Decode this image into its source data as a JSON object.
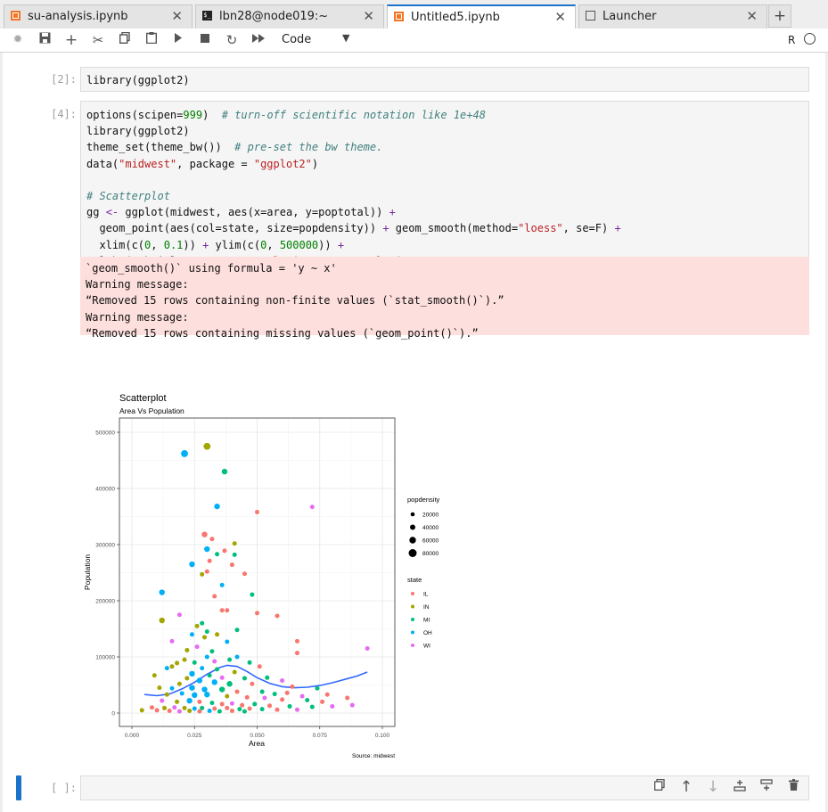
{
  "tabs": [
    {
      "label": "su-analysis.ipynb",
      "icon": "notebook-icon"
    },
    {
      "label": "lbn28@node019:~",
      "icon": "terminal-icon"
    },
    {
      "label": "Untitled5.ipynb",
      "icon": "notebook-icon",
      "active": true
    },
    {
      "label": "Launcher",
      "icon": "launcher-icon"
    }
  ],
  "toolbar": {
    "cell_type": "Code",
    "kernel_name": "R"
  },
  "cells": {
    "c1": {
      "prompt": "[2]:",
      "code": [
        "library(ggplot2)"
      ]
    },
    "c2": {
      "prompt": "[4]:"
    },
    "c3": {
      "prompt": "[ ]:"
    }
  },
  "stderr": [
    "`geom_smooth()` using formula = 'y ~ x'",
    "Warning message:",
    "“Removed 15 rows containing non-finite values (`stat_smooth()`).”",
    "Warning message:",
    "“Removed 15 rows containing missing values (`geom_point()`).”"
  ],
  "chart_data": {
    "type": "scatter",
    "title": "Scatterplot",
    "subtitle": "Area Vs Population",
    "xlabel": "Area",
    "ylabel": "Population",
    "caption": "Source: midwest",
    "xlim": [
      0,
      0.1
    ],
    "ylim": [
      0,
      500000
    ],
    "x_ticks": [
      "0.000",
      "0.025",
      "0.050",
      "0.075",
      "0.100"
    ],
    "y_ticks": [
      "0",
      "100000",
      "200000",
      "300000",
      "400000",
      "500000"
    ],
    "grid": true,
    "legend_position": "right",
    "size_legend": {
      "title": "popdensity",
      "entries": [
        "20000",
        "40000",
        "60000",
        "80000"
      ]
    },
    "color_legend": {
      "title": "state",
      "entries": [
        "IL",
        "IN",
        "MI",
        "OH",
        "WI"
      ]
    },
    "colors": {
      "IL": "#F8766D",
      "IN": "#A3A500",
      "MI": "#00BF7D",
      "OH": "#00B0F6",
      "WI": "#E76BF3",
      "smooth": "#3366FF"
    },
    "points": [
      {
        "x": 0.03,
        "y": 475000,
        "state": "IN",
        "s": 4
      },
      {
        "x": 0.021,
        "y": 462000,
        "state": "OH",
        "s": 4
      },
      {
        "x": 0.037,
        "y": 430000,
        "state": "MI",
        "s": 3
      },
      {
        "x": 0.072,
        "y": 367000,
        "state": "WI",
        "s": 2
      },
      {
        "x": 0.034,
        "y": 368000,
        "state": "OH",
        "s": 3
      },
      {
        "x": 0.05,
        "y": 358000,
        "state": "IL",
        "s": 2
      },
      {
        "x": 0.029,
        "y": 318000,
        "state": "IL",
        "s": 3
      },
      {
        "x": 0.032,
        "y": 310000,
        "state": "IL",
        "s": 2
      },
      {
        "x": 0.041,
        "y": 302000,
        "state": "IN",
        "s": 2
      },
      {
        "x": 0.03,
        "y": 292000,
        "state": "OH",
        "s": 3
      },
      {
        "x": 0.037,
        "y": 289000,
        "state": "IL",
        "s": 2
      },
      {
        "x": 0.031,
        "y": 271000,
        "state": "IL",
        "s": 2
      },
      {
        "x": 0.024,
        "y": 265000,
        "state": "OH",
        "s": 3
      },
      {
        "x": 0.041,
        "y": 282000,
        "state": "MI",
        "s": 2
      },
      {
        "x": 0.034,
        "y": 283000,
        "state": "MI",
        "s": 2
      },
      {
        "x": 0.04,
        "y": 264000,
        "state": "IL",
        "s": 2
      },
      {
        "x": 0.03,
        "y": 252000,
        "state": "IL",
        "s": 2
      },
      {
        "x": 0.028,
        "y": 247000,
        "state": "IN",
        "s": 2
      },
      {
        "x": 0.045,
        "y": 248000,
        "state": "IL",
        "s": 2
      },
      {
        "x": 0.036,
        "y": 228000,
        "state": "OH",
        "s": 2
      },
      {
        "x": 0.012,
        "y": 215000,
        "state": "OH",
        "s": 3
      },
      {
        "x": 0.048,
        "y": 211000,
        "state": "MI",
        "s": 2
      },
      {
        "x": 0.033,
        "y": 208000,
        "state": "IL",
        "s": 2
      },
      {
        "x": 0.038,
        "y": 183000,
        "state": "IL",
        "s": 2
      },
      {
        "x": 0.036,
        "y": 183000,
        "state": "IL",
        "s": 2
      },
      {
        "x": 0.05,
        "y": 178000,
        "state": "IL",
        "s": 2
      },
      {
        "x": 0.019,
        "y": 175000,
        "state": "WI",
        "s": 2
      },
      {
        "x": 0.058,
        "y": 173000,
        "state": "IL",
        "s": 2
      },
      {
        "x": 0.012,
        "y": 165000,
        "state": "IN",
        "s": 3
      },
      {
        "x": 0.028,
        "y": 160000,
        "state": "MI",
        "s": 2
      },
      {
        "x": 0.026,
        "y": 155000,
        "state": "IN",
        "s": 2
      },
      {
        "x": 0.03,
        "y": 145000,
        "state": "MI",
        "s": 2
      },
      {
        "x": 0.042,
        "y": 148000,
        "state": "MI",
        "s": 2
      },
      {
        "x": 0.034,
        "y": 140000,
        "state": "IN",
        "s": 2
      },
      {
        "x": 0.029,
        "y": 135000,
        "state": "IN",
        "s": 2
      },
      {
        "x": 0.024,
        "y": 140000,
        "state": "OH",
        "s": 2
      },
      {
        "x": 0.016,
        "y": 128000,
        "state": "WI",
        "s": 2
      },
      {
        "x": 0.066,
        "y": 128000,
        "state": "IL",
        "s": 2
      },
      {
        "x": 0.038,
        "y": 127000,
        "state": "OH",
        "s": 2
      },
      {
        "x": 0.026,
        "y": 118000,
        "state": "WI",
        "s": 2
      },
      {
        "x": 0.022,
        "y": 112000,
        "state": "IN",
        "s": 2
      },
      {
        "x": 0.032,
        "y": 110000,
        "state": "MI",
        "s": 2
      },
      {
        "x": 0.094,
        "y": 115000,
        "state": "WI",
        "s": 2
      },
      {
        "x": 0.066,
        "y": 107000,
        "state": "IL",
        "s": 2
      },
      {
        "x": 0.03,
        "y": 100000,
        "state": "OH",
        "s": 2
      },
      {
        "x": 0.042,
        "y": 100000,
        "state": "OH",
        "s": 2
      },
      {
        "x": 0.021,
        "y": 95000,
        "state": "IN",
        "s": 2
      },
      {
        "x": 0.018,
        "y": 89000,
        "state": "IN",
        "s": 2
      },
      {
        "x": 0.025,
        "y": 90000,
        "state": "MI",
        "s": 2
      },
      {
        "x": 0.033,
        "y": 92000,
        "state": "WI",
        "s": 2
      },
      {
        "x": 0.039,
        "y": 95000,
        "state": "MI",
        "s": 2
      },
      {
        "x": 0.047,
        "y": 90000,
        "state": "MI",
        "s": 2
      },
      {
        "x": 0.014,
        "y": 80000,
        "state": "OH",
        "s": 2
      },
      {
        "x": 0.016,
        "y": 83000,
        "state": "IN",
        "s": 2
      },
      {
        "x": 0.009,
        "y": 67000,
        "state": "IN",
        "s": 2
      },
      {
        "x": 0.028,
        "y": 80000,
        "state": "OH",
        "s": 2
      },
      {
        "x": 0.034,
        "y": 78000,
        "state": "MI",
        "s": 2
      },
      {
        "x": 0.051,
        "y": 83000,
        "state": "IL",
        "s": 2
      },
      {
        "x": 0.041,
        "y": 73000,
        "state": "IN",
        "s": 2
      },
      {
        "x": 0.024,
        "y": 70000,
        "state": "OH",
        "s": 3
      },
      {
        "x": 0.031,
        "y": 67000,
        "state": "MI",
        "s": 2
      },
      {
        "x": 0.036,
        "y": 63000,
        "state": "WI",
        "s": 2
      },
      {
        "x": 0.022,
        "y": 62000,
        "state": "IN",
        "s": 2
      },
      {
        "x": 0.045,
        "y": 62000,
        "state": "MI",
        "s": 2
      },
      {
        "x": 0.054,
        "y": 63000,
        "state": "MI",
        "s": 2
      },
      {
        "x": 0.06,
        "y": 58000,
        "state": "WI",
        "s": 2
      },
      {
        "x": 0.027,
        "y": 58000,
        "state": "OH",
        "s": 3
      },
      {
        "x": 0.033,
        "y": 55000,
        "state": "OH",
        "s": 3
      },
      {
        "x": 0.039,
        "y": 52000,
        "state": "MI",
        "s": 3
      },
      {
        "x": 0.019,
        "y": 52000,
        "state": "IN",
        "s": 2
      },
      {
        "x": 0.048,
        "y": 52000,
        "state": "IL",
        "s": 2
      },
      {
        "x": 0.064,
        "y": 47000,
        "state": "IL",
        "s": 2
      },
      {
        "x": 0.074,
        "y": 44000,
        "state": "MI",
        "s": 2
      },
      {
        "x": 0.011,
        "y": 45000,
        "state": "IN",
        "s": 2
      },
      {
        "x": 0.016,
        "y": 44000,
        "state": "OH",
        "s": 2
      },
      {
        "x": 0.024,
        "y": 45000,
        "state": "OH",
        "s": 3
      },
      {
        "x": 0.029,
        "y": 42000,
        "state": "OH",
        "s": 3
      },
      {
        "x": 0.036,
        "y": 42000,
        "state": "MI",
        "s": 3
      },
      {
        "x": 0.042,
        "y": 38000,
        "state": "IL",
        "s": 2
      },
      {
        "x": 0.052,
        "y": 38000,
        "state": "MI",
        "s": 2
      },
      {
        "x": 0.057,
        "y": 34000,
        "state": "MI",
        "s": 2
      },
      {
        "x": 0.062,
        "y": 36000,
        "state": "IL",
        "s": 2
      },
      {
        "x": 0.068,
        "y": 30000,
        "state": "WI",
        "s": 2
      },
      {
        "x": 0.078,
        "y": 33000,
        "state": "IL",
        "s": 2
      },
      {
        "x": 0.086,
        "y": 27000,
        "state": "IL",
        "s": 2
      },
      {
        "x": 0.014,
        "y": 33000,
        "state": "IN",
        "s": 2
      },
      {
        "x": 0.02,
        "y": 35000,
        "state": "OH",
        "s": 2
      },
      {
        "x": 0.025,
        "y": 32000,
        "state": "OH",
        "s": 3
      },
      {
        "x": 0.03,
        "y": 33000,
        "state": "OH",
        "s": 3
      },
      {
        "x": 0.038,
        "y": 30000,
        "state": "IN",
        "s": 2
      },
      {
        "x": 0.046,
        "y": 28000,
        "state": "IL",
        "s": 2
      },
      {
        "x": 0.053,
        "y": 27000,
        "state": "WI",
        "s": 2
      },
      {
        "x": 0.06,
        "y": 24000,
        "state": "IL",
        "s": 2
      },
      {
        "x": 0.07,
        "y": 23000,
        "state": "MI",
        "s": 2
      },
      {
        "x": 0.076,
        "y": 20000,
        "state": "IL",
        "s": 2
      },
      {
        "x": 0.012,
        "y": 22000,
        "state": "WI",
        "s": 2
      },
      {
        "x": 0.018,
        "y": 20000,
        "state": "IN",
        "s": 2
      },
      {
        "x": 0.023,
        "y": 22000,
        "state": "OH",
        "s": 3
      },
      {
        "x": 0.027,
        "y": 20000,
        "state": "IL",
        "s": 2
      },
      {
        "x": 0.032,
        "y": 18000,
        "state": "MI",
        "s": 2
      },
      {
        "x": 0.036,
        "y": 16000,
        "state": "IL",
        "s": 2
      },
      {
        "x": 0.04,
        "y": 17000,
        "state": "WI",
        "s": 2
      },
      {
        "x": 0.044,
        "y": 14000,
        "state": "IL",
        "s": 2
      },
      {
        "x": 0.049,
        "y": 16000,
        "state": "MI",
        "s": 2
      },
      {
        "x": 0.055,
        "y": 13000,
        "state": "IL",
        "s": 2
      },
      {
        "x": 0.063,
        "y": 12000,
        "state": "MI",
        "s": 2
      },
      {
        "x": 0.072,
        "y": 11000,
        "state": "MI",
        "s": 2
      },
      {
        "x": 0.08,
        "y": 12000,
        "state": "WI",
        "s": 2
      },
      {
        "x": 0.088,
        "y": 14000,
        "state": "WI",
        "s": 2
      },
      {
        "x": 0.008,
        "y": 10000,
        "state": "IL",
        "s": 2
      },
      {
        "x": 0.013,
        "y": 9000,
        "state": "IN",
        "s": 2
      },
      {
        "x": 0.017,
        "y": 10000,
        "state": "WI",
        "s": 2
      },
      {
        "x": 0.021,
        "y": 9000,
        "state": "IN",
        "s": 2
      },
      {
        "x": 0.025,
        "y": 8000,
        "state": "OH",
        "s": 2
      },
      {
        "x": 0.028,
        "y": 9000,
        "state": "MI",
        "s": 2
      },
      {
        "x": 0.033,
        "y": 8000,
        "state": "IL",
        "s": 2
      },
      {
        "x": 0.038,
        "y": 9000,
        "state": "IL",
        "s": 2
      },
      {
        "x": 0.043,
        "y": 7000,
        "state": "MI",
        "s": 2
      },
      {
        "x": 0.047,
        "y": 8000,
        "state": "IL",
        "s": 2
      },
      {
        "x": 0.052,
        "y": 7000,
        "state": "MI",
        "s": 2
      },
      {
        "x": 0.058,
        "y": 6000,
        "state": "IL",
        "s": 2
      },
      {
        "x": 0.066,
        "y": 6000,
        "state": "WI",
        "s": 2
      },
      {
        "x": 0.004,
        "y": 5000,
        "state": "IN",
        "s": 2
      },
      {
        "x": 0.01,
        "y": 5000,
        "state": "IL",
        "s": 2
      },
      {
        "x": 0.015,
        "y": 4000,
        "state": "IL",
        "s": 2
      },
      {
        "x": 0.019,
        "y": 3000,
        "state": "WI",
        "s": 2
      },
      {
        "x": 0.023,
        "y": 4000,
        "state": "IN",
        "s": 2
      },
      {
        "x": 0.027,
        "y": 3000,
        "state": "IL",
        "s": 2
      },
      {
        "x": 0.031,
        "y": 4000,
        "state": "OH",
        "s": 2
      },
      {
        "x": 0.035,
        "y": 3000,
        "state": "MI",
        "s": 2
      },
      {
        "x": 0.04,
        "y": 4000,
        "state": "IL",
        "s": 2
      },
      {
        "x": 0.045,
        "y": 3000,
        "state": "MI",
        "s": 2
      }
    ],
    "smooth": [
      {
        "x": 0.005,
        "y": 33000
      },
      {
        "x": 0.01,
        "y": 31000
      },
      {
        "x": 0.015,
        "y": 34000
      },
      {
        "x": 0.02,
        "y": 43000
      },
      {
        "x": 0.025,
        "y": 55000
      },
      {
        "x": 0.03,
        "y": 69000
      },
      {
        "x": 0.035,
        "y": 81000
      },
      {
        "x": 0.038,
        "y": 85000
      },
      {
        "x": 0.042,
        "y": 83000
      },
      {
        "x": 0.046,
        "y": 74000
      },
      {
        "x": 0.05,
        "y": 63000
      },
      {
        "x": 0.055,
        "y": 53000
      },
      {
        "x": 0.06,
        "y": 47000
      },
      {
        "x": 0.065,
        "y": 45000
      },
      {
        "x": 0.07,
        "y": 46000
      },
      {
        "x": 0.075,
        "y": 49000
      },
      {
        "x": 0.08,
        "y": 54000
      },
      {
        "x": 0.085,
        "y": 60000
      },
      {
        "x": 0.09,
        "y": 66000
      },
      {
        "x": 0.094,
        "y": 73000
      }
    ]
  }
}
